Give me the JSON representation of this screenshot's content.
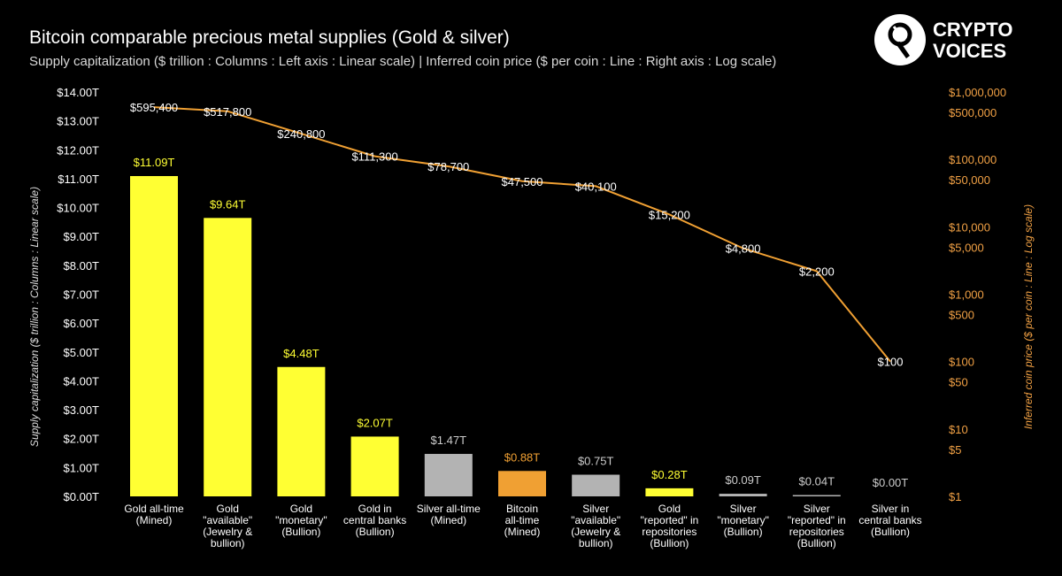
{
  "header": {
    "title": "Bitcoin comparable precious metal supplies (Gold & silver)",
    "subtitle": "Supply capitalization ($ trillion : Columns : Left axis : Linear scale) | Inferred coin price ($ per coin : Line : Right axis : Log scale)"
  },
  "logo": {
    "line1": "CRYPTO",
    "line2": "VOICES",
    "icon": "crypto-voices-logo-icon"
  },
  "chart_data": {
    "type": "bar",
    "title": "Bitcoin comparable precious metal supplies (Gold & silver)",
    "subtitle": "Supply capitalization ($ trillion : Columns : Left axis : Linear scale) | Inferred coin price ($ per coin : Line : Right axis : Log scale)",
    "categories": [
      [
        "Gold all-time",
        "(Mined)"
      ],
      [
        "Gold",
        "\"available\"",
        "(Jewelry &",
        "bullion)"
      ],
      [
        "Gold",
        "\"monetary\"",
        "(Bullion)"
      ],
      [
        "Gold in",
        "central banks",
        "(Bullion)"
      ],
      [
        "Silver all-time",
        "(Mined)"
      ],
      [
        "Bitcoin",
        "all-time",
        "(Mined)"
      ],
      [
        "Silver",
        "\"available\"",
        "(Jewelry &",
        "bullion)"
      ],
      [
        "Gold",
        "\"reported\" in",
        "repositories",
        "(Bullion)"
      ],
      [
        "Silver",
        "\"monetary\"",
        "(Bullion)"
      ],
      [
        "Silver",
        "\"reported\" in",
        "repositories",
        "(Bullion)"
      ],
      [
        "Silver in",
        "central banks",
        "(Bullion)"
      ]
    ],
    "series": [
      {
        "axis": "left",
        "type": "bar",
        "values": [
          11.09,
          9.64,
          4.48,
          2.07,
          1.47,
          0.88,
          0.75,
          0.28,
          0.09,
          0.04,
          0.0
        ],
        "labels": [
          "$11.09T",
          "$9.64T",
          "$4.48T",
          "$2.07T",
          "$1.47T",
          "$0.88T",
          "$0.75T",
          "$0.28T",
          "$0.09T",
          "$0.04T",
          "$0.00T"
        ],
        "colors": [
          "#ffff33",
          "#ffff33",
          "#ffff33",
          "#ffff33",
          "#b3b3b3",
          "#f0a033",
          "#b3b3b3",
          "#ffff33",
          "#b3b3b3",
          "#b3b3b3",
          "#b3b3b3"
        ],
        "label_colors": [
          "#ffff33",
          "#ffff33",
          "#ffff33",
          "#ffff33",
          "#cccccc",
          "#f0a033",
          "#cccccc",
          "#ffff33",
          "#cccccc",
          "#cccccc",
          "#cccccc"
        ]
      },
      {
        "axis": "right",
        "type": "line",
        "color": "#f0a033",
        "values": [
          595400,
          517800,
          240800,
          111300,
          78700,
          47500,
          40100,
          15200,
          4800,
          2200,
          100
        ],
        "labels": [
          "$595,400",
          "$517,800",
          "$240,800",
          "$111,300",
          "$78,700",
          "$47,500",
          "$40,100",
          "$15,200",
          "$4,800",
          "$2,200",
          "$100"
        ]
      }
    ],
    "left_axis": {
      "label": "Supply capitalization ($ trillion : Columns : Linear scale)",
      "scale": "linear",
      "ylim": [
        0,
        14
      ],
      "ticks": [
        0,
        1,
        2,
        3,
        4,
        5,
        6,
        7,
        8,
        9,
        10,
        11,
        12,
        13,
        14
      ],
      "tick_labels": [
        "$0.00T",
        "$1.00T",
        "$2.00T",
        "$3.00T",
        "$4.00T",
        "$5.00T",
        "$6.00T",
        "$7.00T",
        "$8.00T",
        "$9.00T",
        "$10.00T",
        "$11.00T",
        "$12.00T",
        "$13.00T",
        "$14.00T"
      ]
    },
    "right_axis": {
      "label": "Inferred coin price ($ per coin : Line : Log scale)",
      "scale": "log",
      "ylim": [
        1,
        1000000
      ],
      "ticks": [
        1,
        5,
        10,
        50,
        100,
        500,
        1000,
        5000,
        10000,
        50000,
        100000,
        500000,
        1000000
      ],
      "tick_labels": [
        "$1",
        "$5",
        "$10",
        "$50",
        "$100",
        "$500",
        "$1,000",
        "$5,000",
        "$10,000",
        "$50,000",
        "$100,000",
        "$500,000",
        "$1,000,000"
      ]
    },
    "grid": false,
    "legend": "none"
  }
}
